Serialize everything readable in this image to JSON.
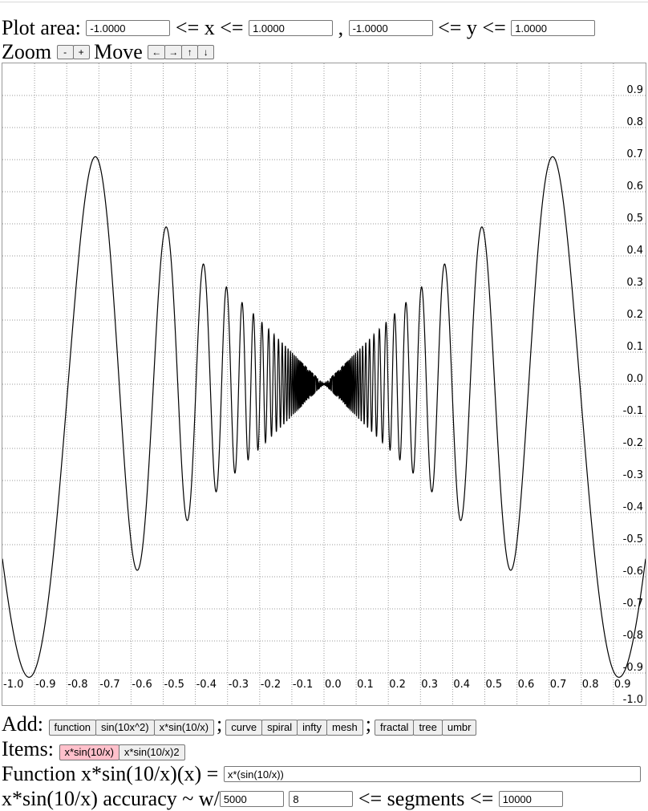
{
  "plot_area": {
    "label": "Plot area:",
    "xmin": "-1.0000",
    "x_op1": "<= x <=",
    "xmax": "1.0000",
    "comma": ",",
    "ymin": "-1.0000",
    "y_op": "<= y <=",
    "ymax": "1.0000"
  },
  "zoom": {
    "label": "Zoom",
    "minus": "-",
    "plus": "+"
  },
  "move": {
    "label": "Move",
    "left": "←",
    "right": "→",
    "up": "↑",
    "down": "↓"
  },
  "add": {
    "label": "Add:",
    "group1": [
      "function",
      "sin(10x^2)",
      "x*sin(10/x)"
    ],
    "sep1": ";",
    "group2": [
      "curve",
      "spiral",
      "infty",
      "mesh"
    ],
    "sep2": ";",
    "group3": [
      "fractal",
      "tree",
      "umbr"
    ]
  },
  "items": {
    "label": "Items:",
    "list": [
      {
        "label": "x*sin(10/x)",
        "active": true
      },
      {
        "label": "x*sin(10/x)2",
        "active": false
      }
    ]
  },
  "function_row": {
    "label": "Function x*sin(10/x)(x) =",
    "value": "x*(sin(10/x))"
  },
  "accuracy_row": {
    "label": "x*sin(10/x) accuracy ~ w/",
    "accuracy": "5000",
    "segments_min": "8",
    "segments_op": "<= segments <=",
    "segments_max": "10000"
  },
  "colors": {
    "grid": "#999999",
    "curve": "#000000",
    "active_item": "#ffc0cb"
  },
  "chart_data": {
    "type": "line",
    "function": "x*(sin(10/x))",
    "xlim": [
      -1.0,
      1.0
    ],
    "ylim": [
      -1.0,
      1.0
    ],
    "grid": true,
    "x_ticks": [
      "-1.0",
      "-0.9",
      "-0.8",
      "-0.7",
      "-0.6",
      "-0.5",
      "-0.4",
      "-0.3",
      "-0.2",
      "-0.1",
      "0.0",
      "0.1",
      "0.2",
      "0.3",
      "0.4",
      "0.5",
      "0.6",
      "0.7",
      "0.8",
      "0.9"
    ],
    "y_ticks": [
      "0.9",
      "0.8",
      "0.7",
      "0.6",
      "0.5",
      "0.4",
      "0.3",
      "0.2",
      "0.1",
      "0.0",
      "-0.1",
      "-0.2",
      "-0.3",
      "-0.4",
      "-0.5",
      "-0.6",
      "-0.7",
      "-0.8",
      "-0.9",
      "-1.0"
    ],
    "segments": 5000
  }
}
